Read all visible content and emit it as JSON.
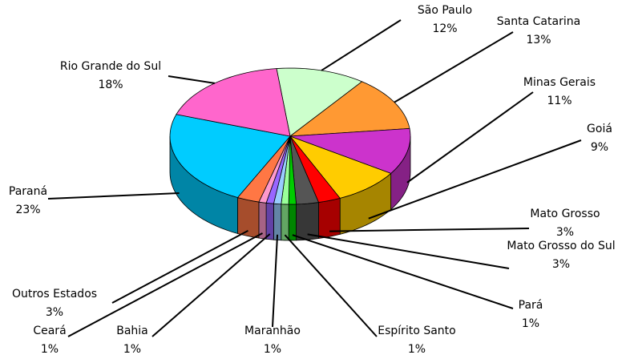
{
  "chart_data": {
    "type": "pie",
    "categories": [
      "São Paulo",
      "Santa Catarina",
      "Minas Gerais",
      "Goiá",
      "Mato Grosso",
      "Mato Grosso do Sul",
      "Pará",
      "Espírito Santo",
      "Maranhão",
      "Bahia",
      "Ceará",
      "Outros Estados",
      "Paraná",
      "Rio Grande do Sul"
    ],
    "values": [
      12,
      13,
      11,
      9,
      3,
      3,
      1,
      1,
      1,
      1,
      1,
      3,
      23,
      18
    ],
    "value_labels": [
      "12%",
      "13%",
      "11%",
      "9%",
      "3%",
      "3%",
      "1%",
      "1%",
      "1%",
      "1%",
      "1%",
      "3%",
      "23%",
      "18%"
    ],
    "colors": [
      "#ccffcc",
      "#ff9933",
      "#cc33cc",
      "#ffcc00",
      "#ff0000",
      "#555555",
      "#00cc00",
      "#99ff99",
      "#99ccff",
      "#9966ff",
      "#ff99cc",
      "#ff7744",
      "#00ccff",
      "#ff66cc"
    ]
  }
}
